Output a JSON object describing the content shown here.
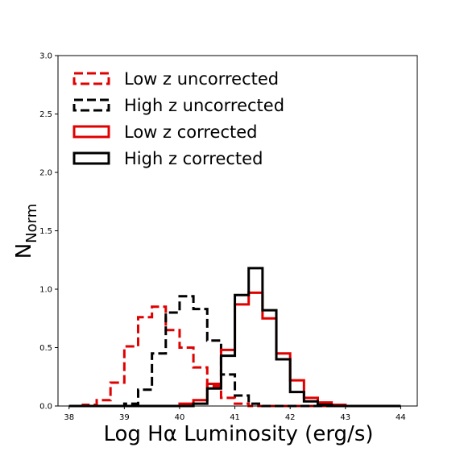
{
  "chart_data": {
    "type": "histogram",
    "xlabel": "Log Hα Luminosity (erg/s)",
    "ylabel": "N",
    "ylabel_subscript": "Norm",
    "xlim": [
      37.8,
      44.3
    ],
    "ylim": [
      0,
      3.0
    ],
    "x_ticks": [
      38,
      39,
      40,
      41,
      42,
      43,
      44
    ],
    "y_ticks": [
      0.0,
      0.5,
      1.0,
      1.5,
      2.0,
      2.5,
      3.0
    ],
    "x_tick_labels": [
      "38",
      "39",
      "40",
      "41",
      "42",
      "43",
      "44"
    ],
    "y_tick_labels": [
      "0.0",
      "0.5",
      "1.0",
      "1.5",
      "2.0",
      "2.5",
      "3.0"
    ],
    "bin_edges": [
      38.0,
      38.25,
      38.5,
      38.75,
      39.0,
      39.25,
      39.5,
      39.75,
      40.0,
      40.25,
      40.5,
      40.75,
      41.0,
      41.25,
      41.5,
      41.75,
      42.0,
      42.25,
      42.5,
      42.75,
      43.0,
      43.25,
      43.5,
      43.75,
      44.0
    ],
    "legend_position": "upper-left",
    "series": [
      {
        "name": "Low z uncorrected",
        "color": "#e00000",
        "linestyle": "dashed",
        "values": [
          0.0,
          0.01,
          0.05,
          0.2,
          0.51,
          0.76,
          0.85,
          0.65,
          0.5,
          0.33,
          0.17,
          0.07,
          0.02,
          0.0,
          0.0,
          0.0,
          0.0,
          0.0,
          0.0,
          0.0,
          0.0,
          0.0,
          0.0,
          0.0
        ]
      },
      {
        "name": "High z uncorrected",
        "color": "#000000",
        "linestyle": "dashed",
        "values": [
          0.0,
          0.0,
          0.0,
          0.0,
          0.02,
          0.14,
          0.45,
          0.8,
          0.94,
          0.83,
          0.56,
          0.27,
          0.09,
          0.02,
          0.0,
          0.0,
          0.0,
          0.0,
          0.0,
          0.0,
          0.0,
          0.0,
          0.0,
          0.0
        ]
      },
      {
        "name": "Low z corrected",
        "color": "#e00000",
        "linestyle": "solid",
        "values": [
          0.0,
          0.0,
          0.0,
          0.0,
          0.0,
          0.0,
          0.0,
          0.0,
          0.02,
          0.05,
          0.19,
          0.48,
          0.87,
          0.97,
          0.75,
          0.45,
          0.22,
          0.07,
          0.03,
          0.01,
          0.0,
          0.0,
          0.0,
          0.0
        ]
      },
      {
        "name": "High z corrected",
        "color": "#000000",
        "linestyle": "solid",
        "values": [
          0.0,
          0.0,
          0.0,
          0.0,
          0.0,
          0.0,
          0.0,
          0.0,
          0.0,
          0.02,
          0.15,
          0.43,
          0.95,
          1.18,
          0.82,
          0.4,
          0.12,
          0.04,
          0.01,
          0.0,
          0.0,
          0.0,
          0.0,
          0.0
        ]
      }
    ]
  }
}
